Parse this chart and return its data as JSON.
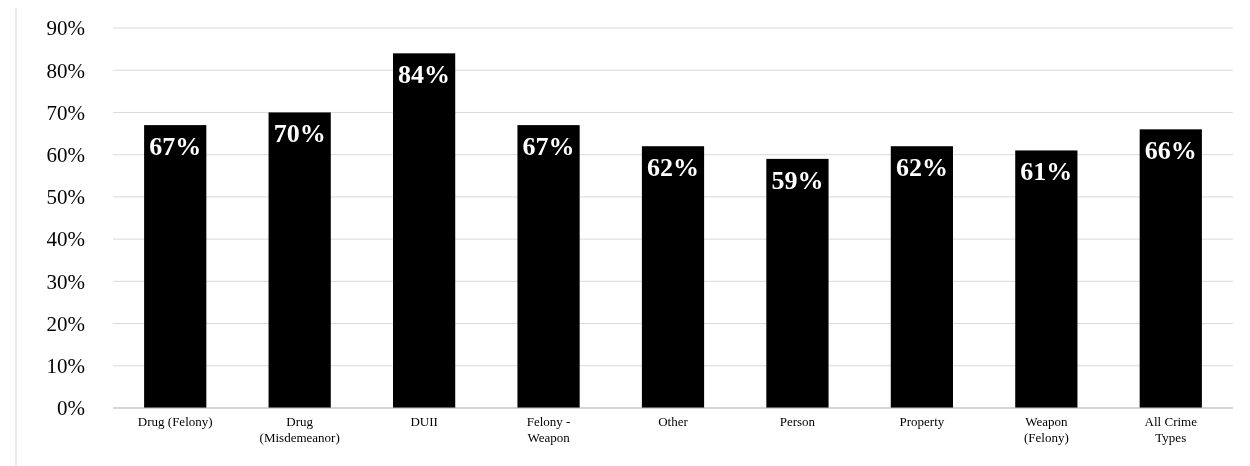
{
  "chart_data": {
    "type": "bar",
    "categories": [
      "Drug (Felony)",
      "Drug\n(Misdemeanor)",
      "DUII",
      "Felony -\nWeapon",
      "Other",
      "Person",
      "Property",
      "Weapon\n(Felony)",
      "All Crime\nTypes"
    ],
    "values": [
      67,
      70,
      84,
      67,
      62,
      59,
      62,
      61,
      66
    ],
    "value_labels": [
      "67%",
      "70%",
      "84%",
      "67%",
      "62%",
      "59%",
      "62%",
      "61%",
      "66%"
    ],
    "color": "#000000",
    "ylim": [
      0,
      90
    ],
    "yticks": [
      {
        "value": 0,
        "label": "0%"
      },
      {
        "value": 10,
        "label": "10%"
      },
      {
        "value": 20,
        "label": "20%"
      },
      {
        "value": 30,
        "label": "30%"
      },
      {
        "value": 40,
        "label": "40%"
      },
      {
        "value": 50,
        "label": "50%"
      },
      {
        "value": 60,
        "label": "60%"
      },
      {
        "value": 70,
        "label": "70%"
      },
      {
        "value": 80,
        "label": "80%"
      },
      {
        "value": 90,
        "label": "90%"
      }
    ],
    "grid": "y"
  }
}
